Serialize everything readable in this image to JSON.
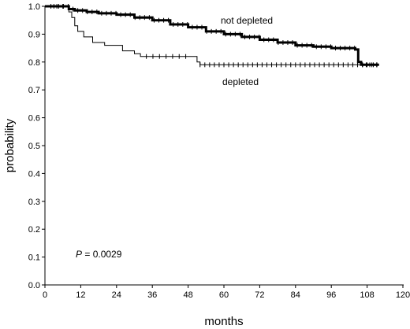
{
  "chart_data": {
    "type": "line",
    "title": "",
    "xlabel": "months",
    "ylabel": "probability",
    "xlim": [
      0,
      120
    ],
    "ylim": [
      0.0,
      1.0
    ],
    "xticks": [
      "0",
      "12",
      "24",
      "36",
      "48",
      "60",
      "72",
      "84",
      "96",
      "108",
      "120"
    ],
    "yticks": [
      "0.0",
      "0.1",
      "0.2",
      "0.3",
      "0.4",
      "0.5",
      "0.6",
      "0.7",
      "0.8",
      "0.9",
      "1.0"
    ],
    "grid": false,
    "annotation": {
      "prefix": "P",
      "text": " = 0.0029"
    },
    "series": [
      {
        "name": "not depleted",
        "points": [
          [
            0,
            1.0
          ],
          [
            6,
            1.0
          ],
          [
            8,
            0.99
          ],
          [
            10,
            0.985
          ],
          [
            14,
            0.98
          ],
          [
            18,
            0.975
          ],
          [
            24,
            0.97
          ],
          [
            30,
            0.96
          ],
          [
            36,
            0.95
          ],
          [
            42,
            0.935
          ],
          [
            48,
            0.925
          ],
          [
            54,
            0.91
          ],
          [
            60,
            0.9
          ],
          [
            66,
            0.89
          ],
          [
            72,
            0.88
          ],
          [
            78,
            0.87
          ],
          [
            84,
            0.86
          ],
          [
            90,
            0.855
          ],
          [
            96,
            0.85
          ],
          [
            104,
            0.845
          ],
          [
            105,
            0.8
          ],
          [
            106,
            0.79
          ],
          [
            112,
            0.79
          ]
        ]
      },
      {
        "name": "depleted",
        "points": [
          [
            0,
            1.0
          ],
          [
            7,
            1.0
          ],
          [
            8,
            0.98
          ],
          [
            9,
            0.96
          ],
          [
            10,
            0.93
          ],
          [
            11,
            0.91
          ],
          [
            13,
            0.89
          ],
          [
            16,
            0.87
          ],
          [
            20,
            0.86
          ],
          [
            24,
            0.86
          ],
          [
            26,
            0.84
          ],
          [
            29,
            0.84
          ],
          [
            30,
            0.83
          ],
          [
            32,
            0.82
          ],
          [
            48,
            0.82
          ],
          [
            51,
            0.8
          ],
          [
            52,
            0.79
          ],
          [
            112,
            0.79
          ]
        ]
      }
    ]
  }
}
